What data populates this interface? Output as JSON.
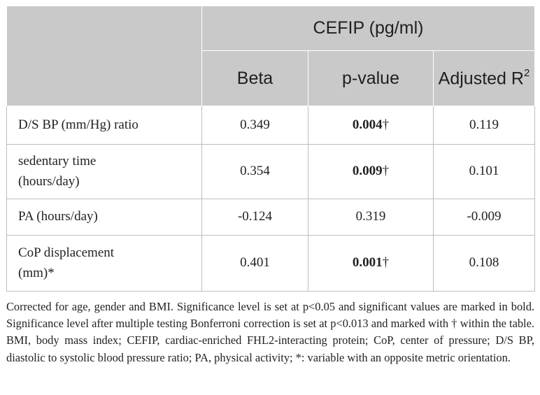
{
  "table": {
    "group_header": "CEFIP (pg/ml)",
    "columns": [
      "Beta",
      "p-value",
      "Adjusted R",
      "2"
    ],
    "rows": [
      {
        "label": "D/S BP (mm/Hg) ratio",
        "beta": "0.349",
        "p_value": "0.004",
        "p_mark": "†",
        "adj_r2": "0.119"
      },
      {
        "label_line1": "sedentary time",
        "label_line2": "(hours/day)",
        "beta": "0.354",
        "p_value": "0.009",
        "p_mark": "†",
        "adj_r2": "0.101"
      },
      {
        "label": "PA (hours/day)",
        "beta": "-0.124",
        "p_value": "0.319",
        "adj_r2": "-0.009"
      },
      {
        "label_line1": "CoP displacement",
        "label_line2": "(mm)*",
        "beta": "0.401",
        "p_value": "0.001",
        "p_mark": "†",
        "adj_r2": "0.108"
      }
    ]
  },
  "footnote": "Corrected for age, gender and BMI. Significance level is set at p<0.05 and significant values are marked in bold. Significance level after multiple testing Bonferroni correction is set at p<0.013 and marked with † within the table. BMI, body mass index; CEFIP, cardiac-enriched FHL2-interacting protein; CoP, center of pressure; D/S BP, diastolic to systolic blood pressure ratio; PA, physical activity; *: variable with an opposite metric orientation."
}
